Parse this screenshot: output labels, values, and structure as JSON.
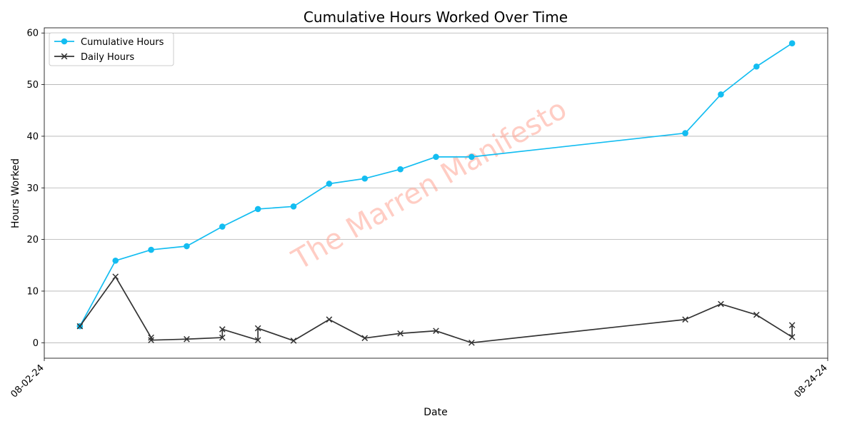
{
  "chart_data": {
    "type": "line",
    "title": "Cumulative Hours Worked Over Time",
    "xlabel": "Date",
    "ylabel": "Hours Worked",
    "x_tick_labels": [
      "08-02-24",
      "08-24-24"
    ],
    "xlim": [
      "2024-08-02",
      "2024-08-24"
    ],
    "ylim": [
      -3,
      61
    ],
    "y_ticks": [
      0,
      10,
      20,
      30,
      40,
      50,
      60
    ],
    "grid": "horizontal",
    "legend_position": "top-left",
    "watermark": "The Marren Manifesto",
    "series": [
      {
        "name": "Cumulative Hours",
        "color": "#13bdf1",
        "marker": "circle",
        "points": [
          {
            "x": "2024-08-03",
            "y": 3.2
          },
          {
            "x": "2024-08-04",
            "y": 15.9
          },
          {
            "x": "2024-08-05",
            "y": 18.0
          },
          {
            "x": "2024-08-06",
            "y": 18.7
          },
          {
            "x": "2024-08-07",
            "y": 22.5
          },
          {
            "x": "2024-08-08",
            "y": 25.9
          },
          {
            "x": "2024-08-09",
            "y": 26.4
          },
          {
            "x": "2024-08-10",
            "y": 30.8
          },
          {
            "x": "2024-08-11",
            "y": 31.8
          },
          {
            "x": "2024-08-12",
            "y": 33.6
          },
          {
            "x": "2024-08-13",
            "y": 36.0
          },
          {
            "x": "2024-08-14",
            "y": 36.0
          },
          {
            "x": "2024-08-20",
            "y": 40.6
          },
          {
            "x": "2024-08-21",
            "y": 48.1
          },
          {
            "x": "2024-08-22",
            "y": 53.5
          },
          {
            "x": "2024-08-23",
            "y": 58.0
          }
        ]
      },
      {
        "name": "Daily Hours",
        "color": "#333333",
        "marker": "x",
        "points": [
          {
            "x": "2024-08-03",
            "y": 3.2
          },
          {
            "x": "2024-08-04",
            "y": 12.8
          },
          {
            "x": "2024-08-05",
            "y": 1.0
          },
          {
            "x": "2024-08-05",
            "y": 0.5
          },
          {
            "x": "2024-08-06",
            "y": 0.7
          },
          {
            "x": "2024-08-07",
            "y": 1.0
          },
          {
            "x": "2024-08-07",
            "y": 2.6
          },
          {
            "x": "2024-08-08",
            "y": 0.5
          },
          {
            "x": "2024-08-08",
            "y": 2.8
          },
          {
            "x": "2024-08-09",
            "y": 0.4
          },
          {
            "x": "2024-08-10",
            "y": 4.5
          },
          {
            "x": "2024-08-11",
            "y": 0.9
          },
          {
            "x": "2024-08-12",
            "y": 1.8
          },
          {
            "x": "2024-08-13",
            "y": 2.3
          },
          {
            "x": "2024-08-14",
            "y": 0.0
          },
          {
            "x": "2024-08-20",
            "y": 4.5
          },
          {
            "x": "2024-08-21",
            "y": 7.5
          },
          {
            "x": "2024-08-22",
            "y": 5.4
          },
          {
            "x": "2024-08-23",
            "y": 1.1
          },
          {
            "x": "2024-08-23",
            "y": 3.4
          }
        ]
      }
    ]
  }
}
